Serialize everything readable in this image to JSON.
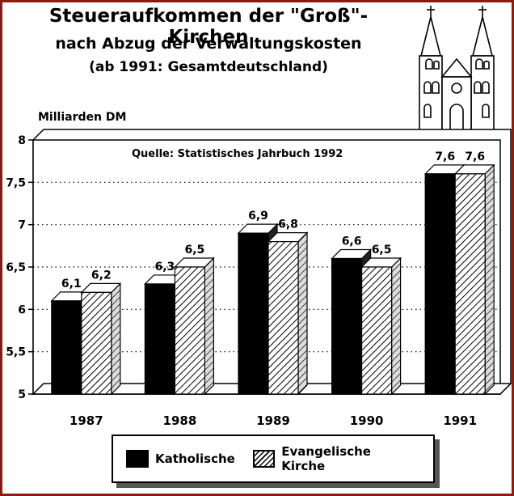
{
  "title_lines": [
    "Steueraufkommen der \"Groß\"-Kirchen",
    "nach Abzug der Verwaltungskosten",
    "(ab 1991: Gesamtdeutschland)"
  ],
  "chart_data": {
    "type": "bar",
    "categories": [
      "1987",
      "1988",
      "1989",
      "1990",
      "1991"
    ],
    "series": [
      {
        "name": "Katholische",
        "values": [
          6.1,
          6.3,
          6.9,
          6.6,
          7.6
        ],
        "labels": [
          "6,1",
          "6,3",
          "6,9",
          "6,6",
          "7,6"
        ],
        "fill": "solid-black"
      },
      {
        "name": "Evangelische Kirche",
        "values": [
          6.2,
          6.5,
          6.8,
          6.5,
          7.6
        ],
        "labels": [
          "6,2",
          "6,5",
          "6,8",
          "6,5",
          "7,6"
        ],
        "fill": "hatched"
      }
    ],
    "ylabel": "Milliarden DM",
    "ylim": [
      5,
      8
    ],
    "yticks": [
      5,
      5.5,
      6,
      6.5,
      7,
      7.5,
      8
    ],
    "ytick_labels": [
      "5",
      "5,5",
      "6",
      "6,5",
      "7",
      "7,5",
      "8"
    ],
    "annotation": "Quelle: Statistisches Jahrbuch 1992",
    "grid": "horizontal dotted",
    "legend": "bottom",
    "style": "3d"
  },
  "colors": {
    "frame": "#8c1a10",
    "bar_dark": "#000000",
    "shadow": "#555555"
  },
  "decoration": "church-icon"
}
